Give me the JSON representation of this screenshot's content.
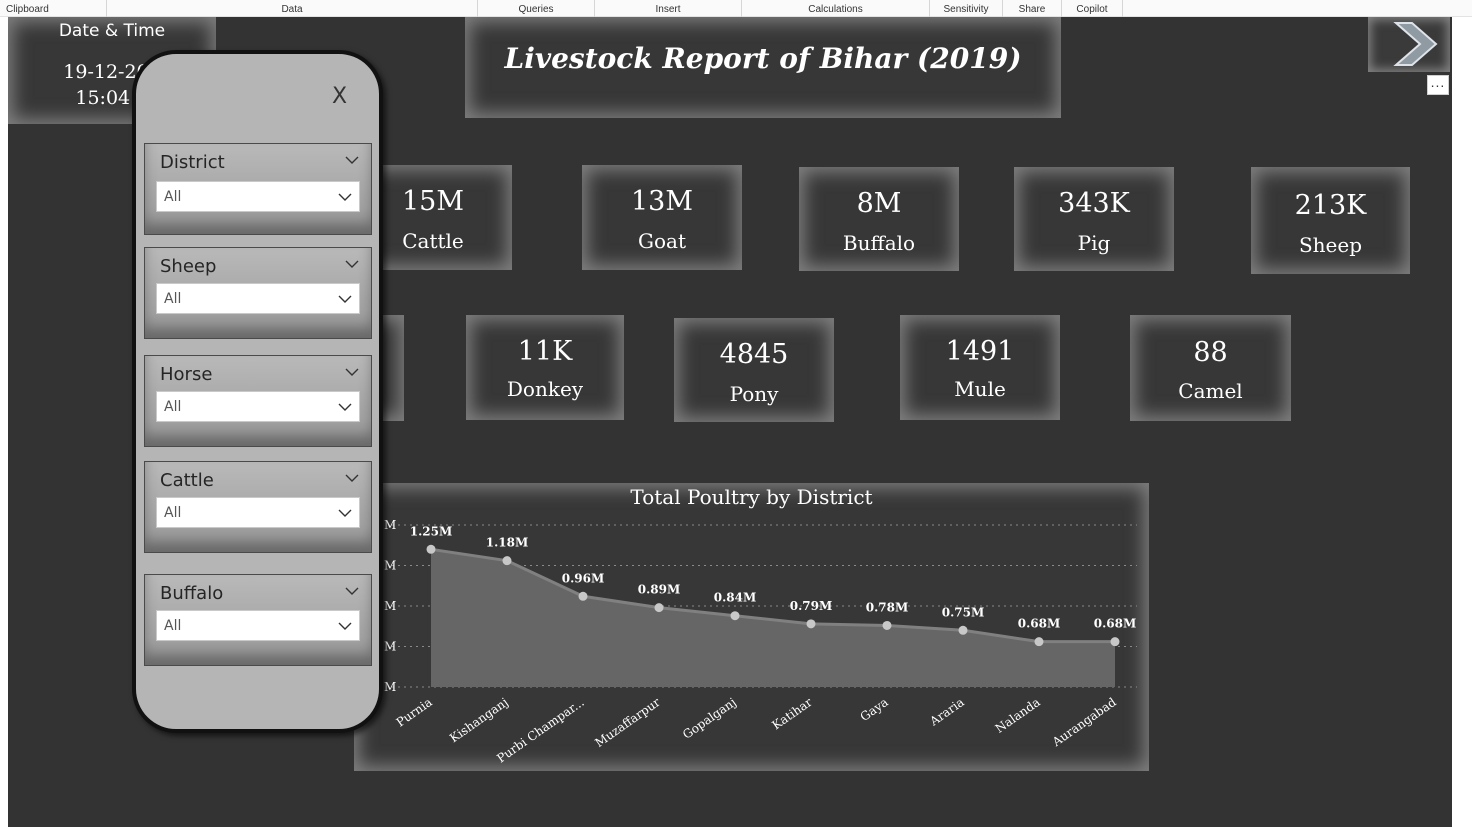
{
  "ribbon": {
    "groups": [
      "Clipboard",
      "Data",
      "Queries",
      "Insert",
      "Calculations",
      "Sensitivity",
      "Share",
      "Copilot"
    ]
  },
  "header": {
    "title": "Livestock Report of Bihar (2019)",
    "datetime_label": "Date & Time",
    "date": "19-12-202",
    "time": "15:04:3"
  },
  "nav": {
    "more_label": "..."
  },
  "kpis": [
    {
      "value": "15M",
      "label": "Cattle"
    },
    {
      "value": "13M",
      "label": "Goat"
    },
    {
      "value": "8M",
      "label": "Buffalo"
    },
    {
      "value": "343K",
      "label": "Pig"
    },
    {
      "value": "213K",
      "label": "Sheep"
    },
    {
      "value": "11K",
      "label": "Donkey"
    },
    {
      "value": "4845",
      "label": "Pony"
    },
    {
      "value": "1491",
      "label": "Mule"
    },
    {
      "value": "88",
      "label": "Camel"
    }
  ],
  "filters": {
    "close_label": "X",
    "slicers": [
      {
        "title": "District",
        "value": "All"
      },
      {
        "title": "Sheep",
        "value": "All"
      },
      {
        "title": "Horse",
        "value": "All"
      },
      {
        "title": "Cattle",
        "value": "All"
      },
      {
        "title": "Buffalo",
        "value": "All"
      }
    ]
  },
  "colors": {
    "canvas": "#333333",
    "card": "#373737",
    "area_fill": "#666666",
    "line": "#808080",
    "marker": "#c8c8c8",
    "panel": "#b5b5b5"
  },
  "chart_data": {
    "type": "area",
    "title": "Total Poultry by District",
    "xlabel": "",
    "ylabel": "",
    "categories": [
      "Purnia",
      "Kishanganj",
      "Purbi Champar...",
      "Muzaffarpur",
      "Gopalganj",
      "Katihar",
      "Gaya",
      "Araria",
      "Nalanda",
      "Aurangabad"
    ],
    "values": [
      1250000,
      1180000,
      960000,
      890000,
      840000,
      790000,
      780000,
      750000,
      680000,
      680000
    ],
    "data_labels": [
      "1.25M",
      "1.18M",
      "0.96M",
      "0.89M",
      "0.84M",
      "0.79M",
      "0.78M",
      "0.75M",
      "0.68M",
      "0.68M"
    ],
    "y_tick_labels": [
      "M",
      "M",
      "M",
      "M",
      "M"
    ],
    "ylim": [
      400000,
      1400000
    ],
    "grid": true
  }
}
